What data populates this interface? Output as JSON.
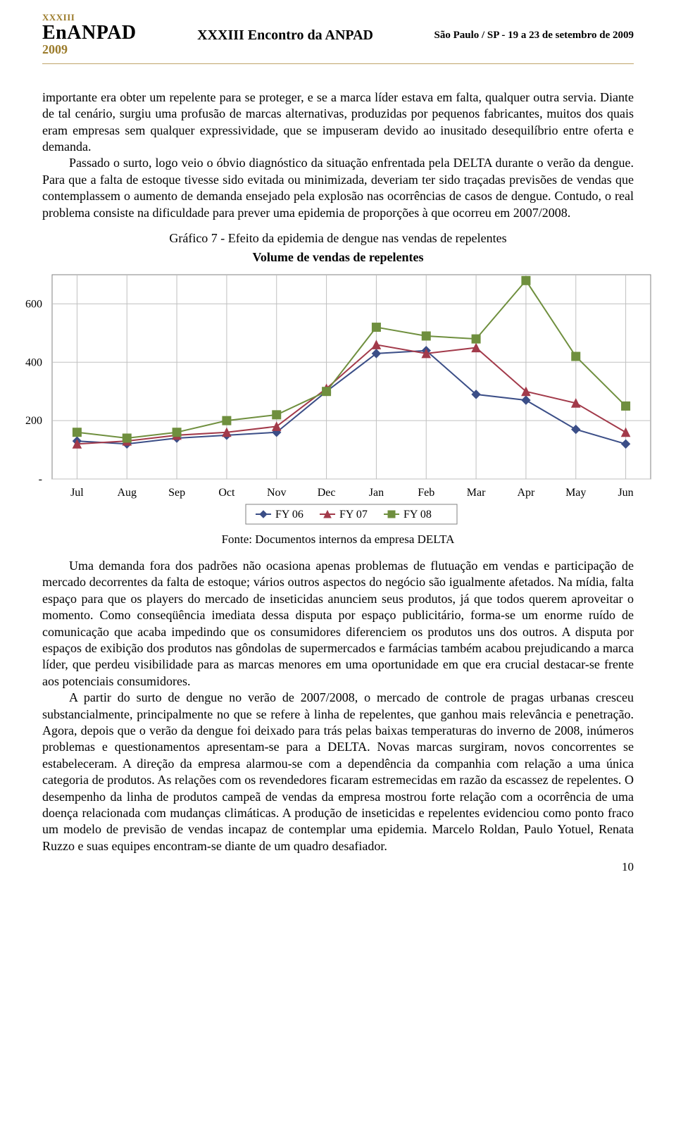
{
  "header": {
    "small": "XXXIII",
    "brand": "EnANPAD",
    "year": "2009",
    "center": "XXXIII Encontro da ANPAD",
    "right": "São Paulo / SP - 19 a 23 de setembro de 2009"
  },
  "para1": "importante era obter um repelente para se proteger, e se a marca líder estava em falta, qualquer outra servia. Diante de tal cenário, surgiu uma profusão de marcas alternativas, produzidas por pequenos fabricantes, muitos dos quais eram empresas sem qualquer expressividade, que se impuseram devido ao inusitado desequilíbrio entre oferta e demanda.",
  "para1b": "Passado o surto, logo veio o óbvio diagnóstico da situação enfrentada pela DELTA durante o verão da dengue. Para que a falta de estoque tivesse sido evitada ou minimizada, deveriam ter sido traçadas previsões de vendas que contemplassem o aumento de demanda ensejado pela explosão nas ocorrências de casos de dengue. Contudo, o real problema consiste na dificuldade para prever uma epidemia de proporções à que ocorreu em 2007/2008.",
  "chart_caption": "Gráfico 7 - Efeito da epidemia de dengue nas vendas de repelentes",
  "chart_title": "Volume de vendas de repelentes",
  "chart_source": "Fonte: Documentos internos da empresa DELTA",
  "chart": {
    "type": "line",
    "background_color": "#ffffff",
    "grid_color": "#c0c0c0",
    "border_color": "#808080",
    "ylim": [
      0,
      700
    ],
    "ytick_step": 200,
    "ytick_labels": [
      "-",
      "200",
      "400",
      "600"
    ],
    "x_categories": [
      "Jul",
      "Aug",
      "Sep",
      "Oct",
      "Nov",
      "Dec",
      "Jan",
      "Feb",
      "Mar",
      "Apr",
      "May",
      "Jun"
    ],
    "series": [
      {
        "name": "FY 06",
        "color": "#3b4e87",
        "marker": "diamond",
        "values": [
          130,
          120,
          140,
          150,
          160,
          300,
          430,
          440,
          290,
          270,
          170,
          120
        ]
      },
      {
        "name": "FY 07",
        "color": "#a23a4a",
        "marker": "triangle",
        "values": [
          120,
          130,
          150,
          160,
          180,
          310,
          460,
          430,
          450,
          300,
          260,
          160
        ]
      },
      {
        "name": "FY 08",
        "color": "#6f8f3e",
        "marker": "square",
        "values": [
          160,
          140,
          160,
          200,
          220,
          300,
          520,
          490,
          480,
          680,
          420,
          250
        ]
      }
    ],
    "line_width": 2,
    "marker_size": 6,
    "label_fontsize": 16
  },
  "para2": "Uma demanda fora dos padrões não ocasiona apenas problemas de flutuação em vendas e participação de mercado decorrentes da falta de estoque; vários outros aspectos do negócio são igualmente afetados. Na mídia, falta espaço para que os players do mercado de inseticidas anunciem seus produtos, já que todos querem aproveitar o momento. Como conseqüência imediata dessa disputa por espaço publicitário, forma-se um enorme ruído de comunicação que acaba impedindo que os consumidores diferenciem os produtos uns dos outros. A disputa por espaços de exibição dos produtos nas gôndolas de supermercados e farmácias também acabou prejudicando a marca líder, que perdeu visibilidade para as marcas menores em uma oportunidade em que era crucial destacar-se frente aos potenciais consumidores.",
  "para3": "A partir do surto de dengue no verão de 2007/2008, o mercado de controle de pragas urbanas cresceu substancialmente, principalmente no que se refere à linha de repelentes, que ganhou mais relevância e penetração. Agora, depois que o verão da dengue foi deixado para trás pelas baixas temperaturas do inverno de 2008, inúmeros problemas e questionamentos apresentam-se para a DELTA. Novas marcas surgiram, novos concorrentes se estabeleceram. A direção da empresa alarmou-se com a dependência da companhia com relação a uma única categoria de produtos. As relações com os revendedores ficaram estremecidas em razão da escassez de repelentes. O desempenho da linha de produtos campeã de vendas da empresa mostrou forte relação com a ocorrência de uma doença relacionada com mudanças climáticas. A produção de inseticidas e repelentes evidenciou como ponto fraco um modelo de previsão de vendas incapaz de contemplar uma epidemia. Marcelo Roldan, Paulo Yotuel, Renata Ruzzo e suas equipes encontram-se diante de um quadro desafiador.",
  "page_number": "10"
}
